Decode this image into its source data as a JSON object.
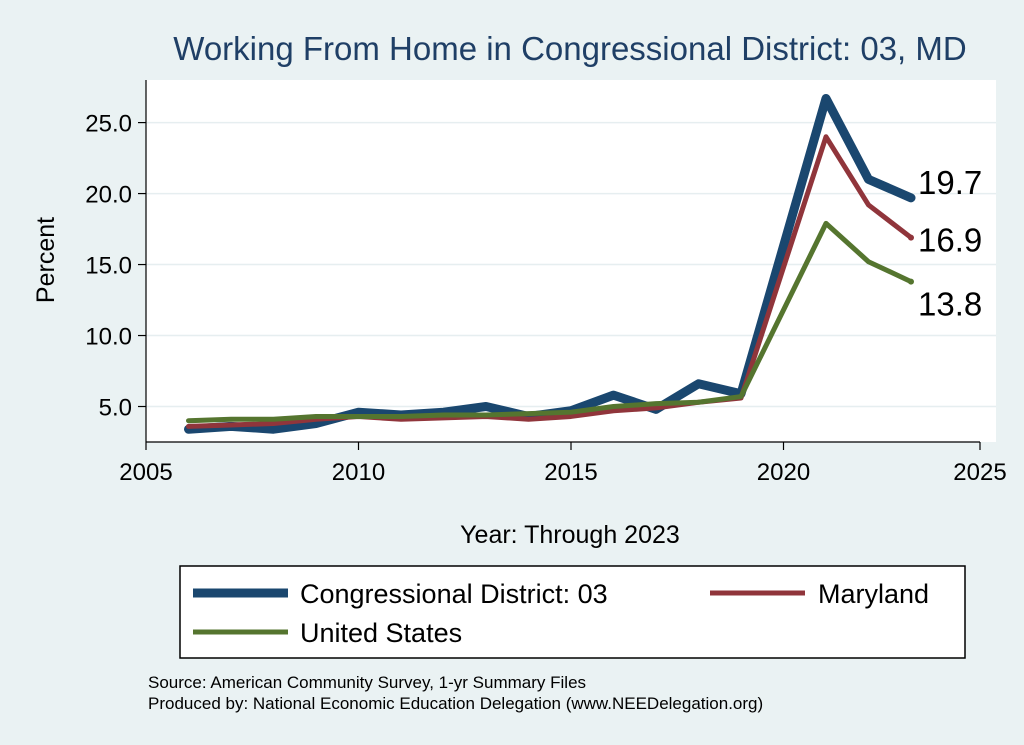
{
  "chart_data": {
    "type": "line",
    "title": "Working From Home in Congressional District: 03, MD",
    "xlabel": "Year: Through 2023",
    "ylabel": "Percent",
    "xlim": [
      2005,
      2025
    ],
    "ylim": [
      2.5,
      28.0
    ],
    "x_ticks": [
      2005,
      2010,
      2015,
      2020,
      2025
    ],
    "x_tick_labels": [
      "2005",
      "2010",
      "2015",
      "2020",
      "2025"
    ],
    "y_ticks": [
      5,
      10,
      15,
      20,
      25
    ],
    "y_tick_labels": [
      "5.0",
      "10.0",
      "15.0",
      "20.0",
      "25.0"
    ],
    "grid": true,
    "x": [
      2006,
      2007,
      2008,
      2009,
      2010,
      2011,
      2012,
      2013,
      2014,
      2015,
      2016,
      2017,
      2018,
      2019,
      2021,
      2022,
      2023
    ],
    "series": [
      {
        "name": "Congressional District: 03",
        "color": "#1a476f",
        "values": [
          3.4,
          3.6,
          3.4,
          3.8,
          4.6,
          4.4,
          4.6,
          5.0,
          4.3,
          4.7,
          5.8,
          4.8,
          6.6,
          5.9,
          26.7,
          21.0,
          19.7
        ],
        "end_label": "19.7"
      },
      {
        "name": "Maryland",
        "color": "#90353b",
        "values": [
          3.6,
          3.7,
          3.8,
          4.1,
          4.3,
          4.1,
          4.2,
          4.3,
          4.1,
          4.3,
          4.7,
          4.9,
          5.3,
          5.6,
          24.0,
          19.2,
          16.9
        ],
        "end_label": "16.9"
      },
      {
        "name": "United States",
        "color": "#55752f",
        "values": [
          4.0,
          4.1,
          4.1,
          4.3,
          4.3,
          4.3,
          4.4,
          4.4,
          4.5,
          4.6,
          5.0,
          5.2,
          5.3,
          5.7,
          17.9,
          15.2,
          13.8
        ],
        "end_label": "13.8"
      }
    ],
    "legend": [
      "Congressional District: 03",
      "Maryland",
      "United States"
    ],
    "legend_position": "bottom"
  },
  "source_note": "Source: American Community Survey, 1-yr Summary Files",
  "producer_note": "Produced by: National Economic Education Delegation (www.NEEDelegation.org)"
}
